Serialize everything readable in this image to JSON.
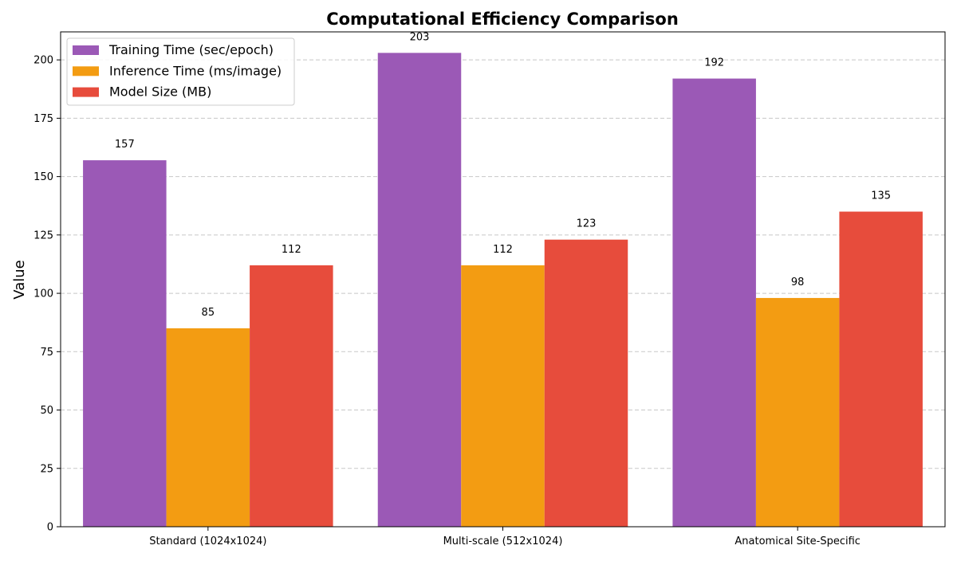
{
  "chart_data": {
    "type": "bar",
    "title": "Computational Efficiency Comparison",
    "xlabel": "",
    "ylabel": "Value",
    "ylim": [
      0,
      212
    ],
    "yticks": [
      0,
      25,
      50,
      75,
      100,
      125,
      150,
      175,
      200
    ],
    "grid": true,
    "legend_position": "top-left",
    "categories": [
      "Standard (1024x1024)",
      "Multi-scale (512x1024)",
      "Anatomical Site-Specific"
    ],
    "series": [
      {
        "name": "Training Time (sec/epoch)",
        "color": "#9b59b6",
        "values": [
          157,
          203,
          192
        ]
      },
      {
        "name": "Inference Time (ms/image)",
        "color": "#f39c12",
        "values": [
          85,
          112,
          98
        ]
      },
      {
        "name": "Model Size (MB)",
        "color": "#e74c3c",
        "values": [
          112,
          123,
          135
        ]
      }
    ]
  }
}
